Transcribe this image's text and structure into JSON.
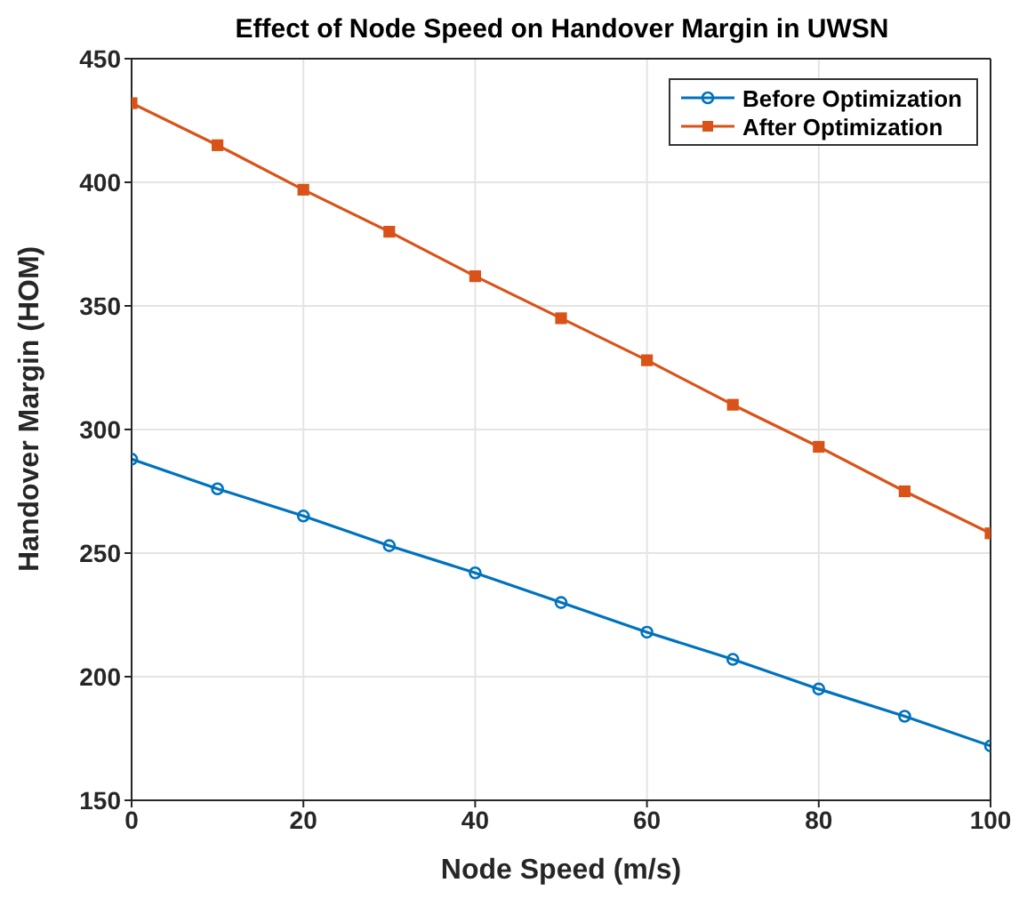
{
  "chart_data": {
    "type": "line",
    "title": "Effect of Node Speed on Handover Margin in UWSN",
    "xlabel": "Node Speed (m/s)",
    "ylabel": "Handover Margin (HOM)",
    "x": [
      0,
      10,
      20,
      30,
      40,
      50,
      60,
      70,
      80,
      90,
      100
    ],
    "series": [
      {
        "name": "Before Optimization",
        "color": "#0072bd",
        "marker": "circle",
        "values": [
          288,
          276,
          265,
          253,
          242,
          230,
          218,
          207,
          195,
          184,
          172
        ]
      },
      {
        "name": "After Optimization",
        "color": "#d95319",
        "marker": "square",
        "values": [
          432,
          415,
          397,
          380,
          362,
          345,
          328,
          310,
          293,
          275,
          258
        ]
      }
    ],
    "xlim": [
      0,
      100
    ],
    "xticks": [
      0,
      20,
      40,
      60,
      80,
      100
    ],
    "ylim": [
      150,
      450
    ],
    "yticks": [
      150,
      200,
      250,
      300,
      350,
      400,
      450
    ],
    "grid": true,
    "legend": "top right",
    "line_style": "solid"
  }
}
